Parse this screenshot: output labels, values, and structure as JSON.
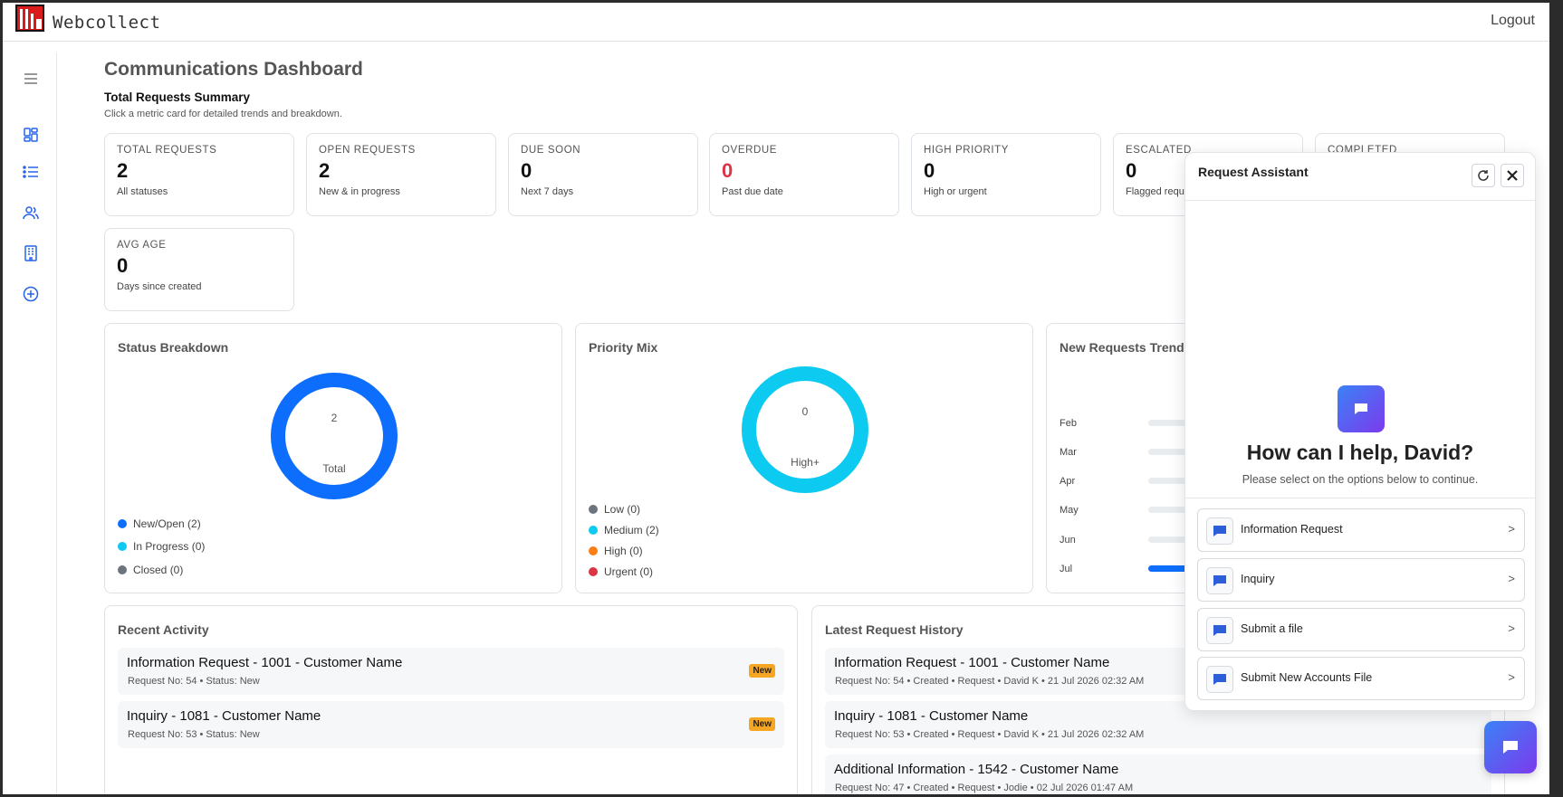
{
  "header": {
    "brand": "Webcollect",
    "logout_label": "Logout"
  },
  "sidebar": {
    "items": [
      {
        "icon": "menu-icon"
      },
      {
        "icon": "dashboard-icon"
      },
      {
        "icon": "list-icon"
      },
      {
        "icon": "users-icon"
      },
      {
        "icon": "building-icon"
      },
      {
        "icon": "add-circle-icon"
      }
    ]
  },
  "page": {
    "title": "Communications Dashboard",
    "summary_title": "Total Requests Summary",
    "summary_hint": "Click a metric card for detailed trends and breakdown."
  },
  "metrics": [
    {
      "label": "TOTAL REQUESTS",
      "value": "2",
      "desc": "All statuses"
    },
    {
      "label": "OPEN REQUESTS",
      "value": "2",
      "desc": "New & in progress"
    },
    {
      "label": "DUE SOON",
      "value": "0",
      "desc": "Next 7 days"
    },
    {
      "label": "OVERDUE",
      "value": "0",
      "desc": "Past due date"
    },
    {
      "label": "HIGH PRIORITY",
      "value": "0",
      "desc": "High or urgent"
    },
    {
      "label": "ESCALATED",
      "value": "0",
      "desc": "Flagged requ"
    },
    {
      "label": "COMPLETED",
      "value": "",
      "desc": ""
    },
    {
      "label": "AVG AGE",
      "value": "0",
      "desc": "Days since created"
    }
  ],
  "status_breakdown": {
    "title": "Status Breakdown",
    "center_value": "2",
    "center_label": "Total",
    "legend": [
      {
        "label": "New/Open (2)",
        "color": "#0d6efd"
      },
      {
        "label": "In Progress (0)",
        "color": "#0dcaf0"
      },
      {
        "label": "Closed (0)",
        "color": "#6c757d"
      }
    ]
  },
  "priority_mix": {
    "title": "Priority Mix",
    "center_value": "0",
    "center_label": "High+",
    "legend": [
      {
        "label": "Low (0)",
        "color": "#6c757d"
      },
      {
        "label": "Medium (2)",
        "color": "#0dcaf0"
      },
      {
        "label": "High (0)",
        "color": "#fd7e14"
      },
      {
        "label": "Urgent (0)",
        "color": "#dc3545"
      }
    ]
  },
  "trend": {
    "title": "New Requests Trend",
    "months": [
      {
        "label": "Feb",
        "fraction": 0
      },
      {
        "label": "Mar",
        "fraction": 0
      },
      {
        "label": "Apr",
        "fraction": 0
      },
      {
        "label": "May",
        "fraction": 0
      },
      {
        "label": "Jun",
        "fraction": 0
      },
      {
        "label": "Jul",
        "fraction": 1
      }
    ]
  },
  "recent_activity": {
    "title": "Recent Activity",
    "items": [
      {
        "title": "Information Request - 1001 - Customer Name",
        "meta": "Request No: 54 • Status: New",
        "badge": "New"
      },
      {
        "title": "Inquiry - 1081 - Customer Name",
        "meta": "Request No: 53 • Status: New",
        "badge": "New"
      }
    ]
  },
  "latest_history": {
    "title": "Latest Request History",
    "items": [
      {
        "title": "Information Request - 1001 - Customer Name",
        "meta": "Request No: 54 • Created • Request • David K • 21 Jul 2026 02:32 AM"
      },
      {
        "title": "Inquiry - 1081 - Customer Name",
        "meta": "Request No: 53 • Created • Request • David K • 21 Jul 2026 02:32 AM"
      },
      {
        "title": "Additional Information - 1542 - Customer Name",
        "meta": "Request No: 47 • Created • Request • Jodie • 02 Jul 2026 01:47 AM"
      }
    ]
  },
  "assistant": {
    "title": "Request Assistant",
    "greeting": "How can I help, David?",
    "hint": "Please select on the options below to continue.",
    "options": [
      {
        "label": "Information Request",
        "chevron": ">"
      },
      {
        "label": "Inquiry",
        "chevron": ">"
      },
      {
        "label": "Submit a file",
        "chevron": ">"
      },
      {
        "label": "Submit New Accounts File",
        "chevron": ">"
      }
    ]
  }
}
